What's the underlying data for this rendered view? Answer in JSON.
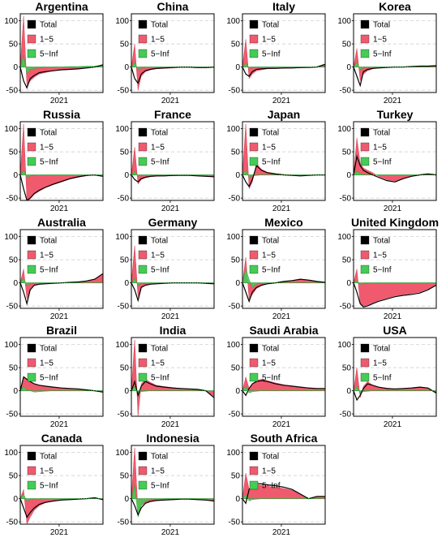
{
  "chart_data": {
    "type": "area",
    "layout": {
      "rows": 5,
      "cols": 4
    },
    "shared": {
      "ylim": [
        -55,
        115
      ],
      "yticks": [
        -50,
        0,
        50,
        100
      ],
      "xtick_label": "2021",
      "grid": "horizontal dashed",
      "zero_line": "green dotted",
      "legend_position": "top-left",
      "legend": [
        {
          "name": "Total",
          "color": "#000000"
        },
        {
          "name": "1−5",
          "color": "#f05a6e"
        },
        {
          "name": "5−Inf",
          "color": "#44cc55"
        }
      ]
    },
    "panels": [
      {
        "country": "Argentina",
        "x_frac": [
          0.0,
          0.04,
          0.08,
          0.12,
          0.17,
          0.23,
          0.3,
          0.4,
          0.5,
          0.6,
          0.7,
          0.8,
          0.9,
          1.0
        ],
        "total": [
          0,
          -30,
          -45,
          -25,
          -18,
          -12,
          -10,
          -8,
          -6,
          -5,
          -4,
          -2,
          0,
          5
        ],
        "short": [
          0,
          110,
          -40,
          -30,
          -22,
          -15,
          -12,
          -8,
          -6,
          -4,
          -3,
          -2,
          0,
          3
        ],
        "long": [
          0,
          25,
          -15,
          -5,
          -3,
          -2,
          -1,
          0,
          0,
          1,
          1,
          2,
          2,
          3
        ]
      },
      {
        "country": "China",
        "x_frac": [
          0.0,
          0.04,
          0.08,
          0.12,
          0.17,
          0.23,
          0.3,
          0.4,
          0.5,
          0.6,
          0.7,
          0.8,
          0.9,
          1.0
        ],
        "total": [
          0,
          -25,
          -35,
          -15,
          -8,
          -5,
          -3,
          -2,
          -1,
          0,
          0,
          -1,
          -1,
          0
        ],
        "short": [
          0,
          50,
          -50,
          -20,
          -10,
          -6,
          -4,
          -3,
          -2,
          -1,
          -1,
          -2,
          -2,
          -1
        ],
        "long": [
          0,
          10,
          -5,
          -2,
          -1,
          0,
          0,
          0,
          0,
          0,
          0,
          0,
          0,
          0
        ]
      },
      {
        "country": "Italy",
        "x_frac": [
          0.0,
          0.04,
          0.08,
          0.12,
          0.17,
          0.23,
          0.3,
          0.4,
          0.5,
          0.6,
          0.7,
          0.8,
          0.9,
          1.0
        ],
        "total": [
          0,
          -15,
          -20,
          -10,
          -5,
          -4,
          -3,
          -3,
          -2,
          -2,
          -1,
          -1,
          0,
          6
        ],
        "short": [
          0,
          60,
          -25,
          -15,
          -8,
          -6,
          -4,
          -3,
          -3,
          -2,
          -2,
          -1,
          0,
          6
        ],
        "long": [
          0,
          8,
          -3,
          -1,
          0,
          0,
          0,
          0,
          0,
          0,
          0,
          0,
          0,
          1
        ]
      },
      {
        "country": "Korea",
        "x_frac": [
          0.0,
          0.04,
          0.08,
          0.12,
          0.17,
          0.23,
          0.3,
          0.4,
          0.5,
          0.6,
          0.7,
          0.8,
          0.9,
          1.0
        ],
        "total": [
          0,
          -20,
          -40,
          -10,
          -5,
          -3,
          -2,
          -1,
          0,
          0,
          1,
          2,
          2,
          3
        ],
        "short": [
          0,
          40,
          -30,
          -15,
          -8,
          -4,
          -2,
          -1,
          0,
          0,
          1,
          1,
          2,
          2
        ],
        "long": [
          0,
          10,
          -5,
          -2,
          -1,
          0,
          0,
          0,
          0,
          0,
          0,
          0,
          0,
          0
        ]
      },
      {
        "country": "Russia",
        "x_frac": [
          0.0,
          0.04,
          0.08,
          0.12,
          0.17,
          0.23,
          0.3,
          0.4,
          0.5,
          0.6,
          0.7,
          0.8,
          0.9,
          1.0
        ],
        "total": [
          0,
          -30,
          -55,
          -50,
          -40,
          -33,
          -27,
          -20,
          -14,
          -8,
          -4,
          -1,
          0,
          -3
        ],
        "short": [
          0,
          110,
          -55,
          -52,
          -42,
          -35,
          -28,
          -21,
          -15,
          -9,
          -5,
          -2,
          0,
          -3
        ],
        "long": [
          0,
          10,
          -5,
          -2,
          -1,
          0,
          0,
          0,
          0,
          0,
          0,
          0,
          0,
          0
        ]
      },
      {
        "country": "France",
        "x_frac": [
          0.0,
          0.04,
          0.08,
          0.12,
          0.17,
          0.23,
          0.3,
          0.4,
          0.5,
          0.6,
          0.7,
          0.8,
          0.9,
          1.0
        ],
        "total": [
          0,
          -10,
          -15,
          -8,
          -5,
          -3,
          -2,
          -2,
          -1,
          -1,
          -1,
          -2,
          -3,
          -4
        ],
        "short": [
          0,
          60,
          -20,
          -10,
          -6,
          -4,
          -3,
          -2,
          -2,
          -1,
          -1,
          -2,
          -3,
          -4
        ],
        "long": [
          0,
          8,
          -3,
          -1,
          0,
          0,
          0,
          0,
          0,
          0,
          0,
          0,
          0,
          0
        ]
      },
      {
        "country": "Japan",
        "x_frac": [
          0.0,
          0.04,
          0.08,
          0.12,
          0.17,
          0.23,
          0.3,
          0.4,
          0.5,
          0.6,
          0.7,
          0.8,
          0.9,
          1.0
        ],
        "total": [
          0,
          -15,
          -25,
          -10,
          20,
          10,
          5,
          2,
          0,
          -1,
          -2,
          -1,
          0,
          0
        ],
        "short": [
          0,
          110,
          -30,
          -15,
          25,
          12,
          6,
          3,
          1,
          0,
          -1,
          -1,
          0,
          0
        ],
        "long": [
          0,
          10,
          -5,
          -2,
          -1,
          0,
          0,
          0,
          0,
          0,
          0,
          0,
          0,
          0
        ]
      },
      {
        "country": "Turkey",
        "x_frac": [
          0.0,
          0.04,
          0.08,
          0.12,
          0.17,
          0.23,
          0.3,
          0.4,
          0.5,
          0.6,
          0.7,
          0.8,
          0.9,
          1.0
        ],
        "total": [
          0,
          40,
          20,
          10,
          5,
          0,
          -5,
          -12,
          -15,
          -8,
          -3,
          0,
          2,
          0
        ],
        "short": [
          0,
          80,
          25,
          15,
          10,
          5,
          -3,
          -10,
          -13,
          -7,
          -2,
          1,
          3,
          1
        ],
        "long": [
          0,
          8,
          3,
          1,
          0,
          0,
          0,
          0,
          0,
          0,
          0,
          0,
          0,
          0
        ]
      },
      {
        "country": "Australia",
        "x_frac": [
          0.0,
          0.04,
          0.08,
          0.12,
          0.17,
          0.23,
          0.3,
          0.4,
          0.5,
          0.6,
          0.7,
          0.8,
          0.9,
          1.0
        ],
        "total": [
          0,
          -20,
          -45,
          -15,
          -5,
          -3,
          -2,
          -1,
          0,
          1,
          2,
          4,
          8,
          20
        ],
        "short": [
          0,
          30,
          -35,
          -12,
          -4,
          -2,
          -1,
          0,
          0,
          1,
          2,
          4,
          8,
          20
        ],
        "long": [
          0,
          10,
          -5,
          -2,
          -1,
          0,
          0,
          0,
          0,
          0,
          0,
          0,
          0,
          0
        ]
      },
      {
        "country": "Germany",
        "x_frac": [
          0.0,
          0.04,
          0.08,
          0.12,
          0.17,
          0.23,
          0.3,
          0.4,
          0.5,
          0.6,
          0.7,
          0.8,
          0.9,
          1.0
        ],
        "total": [
          0,
          -15,
          -38,
          -10,
          -5,
          -3,
          -2,
          -1,
          0,
          0,
          0,
          0,
          -1,
          -2
        ],
        "short": [
          0,
          80,
          -30,
          -10,
          -5,
          -3,
          -2,
          -1,
          0,
          0,
          0,
          0,
          -1,
          -2
        ],
        "long": [
          0,
          10,
          -5,
          -2,
          -1,
          0,
          0,
          0,
          0,
          0,
          0,
          0,
          0,
          0
        ]
      },
      {
        "country": "Mexico",
        "x_frac": [
          0.0,
          0.04,
          0.08,
          0.12,
          0.17,
          0.23,
          0.3,
          0.4,
          0.5,
          0.6,
          0.7,
          0.8,
          0.9,
          1.0
        ],
        "total": [
          0,
          -20,
          -40,
          -20,
          -10,
          -5,
          -2,
          0,
          3,
          5,
          8,
          6,
          3,
          1
        ],
        "short": [
          0,
          55,
          -35,
          -25,
          -12,
          -6,
          -2,
          0,
          3,
          5,
          8,
          6,
          3,
          1
        ],
        "long": [
          0,
          30,
          8,
          -10,
          -3,
          -1,
          0,
          0,
          0,
          0,
          0,
          0,
          0,
          0
        ]
      },
      {
        "country": "United Kingdom",
        "x_frac": [
          0.0,
          0.04,
          0.08,
          0.12,
          0.17,
          0.23,
          0.3,
          0.4,
          0.5,
          0.6,
          0.7,
          0.8,
          0.9,
          1.0
        ],
        "total": [
          0,
          -20,
          -45,
          -52,
          -50,
          -45,
          -40,
          -35,
          -30,
          -27,
          -25,
          -22,
          -15,
          -5
        ],
        "short": [
          0,
          30,
          -45,
          -50,
          -48,
          -43,
          -38,
          -33,
          -28,
          -25,
          -23,
          -20,
          -13,
          -4
        ],
        "long": [
          0,
          5,
          -3,
          -2,
          -1,
          0,
          0,
          0,
          0,
          0,
          0,
          0,
          0,
          0
        ]
      },
      {
        "country": "Brazil",
        "x_frac": [
          0.0,
          0.04,
          0.08,
          0.12,
          0.17,
          0.23,
          0.3,
          0.4,
          0.5,
          0.6,
          0.7,
          0.8,
          0.9,
          1.0
        ],
        "total": [
          0,
          30,
          25,
          20,
          15,
          12,
          10,
          8,
          6,
          5,
          4,
          2,
          0,
          -3
        ],
        "short": [
          0,
          30,
          25,
          20,
          15,
          12,
          10,
          8,
          6,
          5,
          4,
          2,
          0,
          -3
        ],
        "long": [
          0,
          10,
          2,
          0,
          -3,
          -2,
          -1,
          0,
          0,
          0,
          0,
          0,
          0,
          0
        ]
      },
      {
        "country": "India",
        "x_frac": [
          0.0,
          0.04,
          0.08,
          0.12,
          0.17,
          0.23,
          0.3,
          0.4,
          0.5,
          0.6,
          0.7,
          0.8,
          0.9,
          1.0
        ],
        "total": [
          0,
          20,
          -10,
          10,
          20,
          15,
          10,
          8,
          6,
          5,
          4,
          3,
          0,
          -15
        ],
        "short": [
          0,
          110,
          -55,
          15,
          25,
          18,
          12,
          9,
          7,
          5,
          4,
          3,
          0,
          -12
        ],
        "long": [
          0,
          10,
          -5,
          -2,
          -1,
          0,
          0,
          0,
          0,
          0,
          0,
          0,
          0,
          0
        ]
      },
      {
        "country": "Saudi Arabia",
        "x_frac": [
          0.0,
          0.04,
          0.08,
          0.12,
          0.17,
          0.23,
          0.3,
          0.4,
          0.5,
          0.6,
          0.7,
          0.8,
          0.9,
          1.0
        ],
        "total": [
          0,
          -10,
          5,
          15,
          20,
          22,
          20,
          15,
          12,
          10,
          8,
          6,
          5,
          5
        ],
        "short": [
          0,
          30,
          5,
          15,
          22,
          25,
          22,
          17,
          13,
          10,
          8,
          6,
          5,
          5
        ],
        "long": [
          0,
          10,
          -5,
          -2,
          -1,
          0,
          0,
          0,
          0,
          0,
          0,
          0,
          0,
          0
        ]
      },
      {
        "country": "USA",
        "x_frac": [
          0.0,
          0.04,
          0.08,
          0.12,
          0.17,
          0.23,
          0.3,
          0.4,
          0.5,
          0.6,
          0.7,
          0.8,
          0.9,
          1.0
        ],
        "total": [
          0,
          -20,
          -10,
          5,
          15,
          12,
          8,
          5,
          4,
          5,
          6,
          8,
          6,
          -5
        ],
        "short": [
          0,
          50,
          -15,
          10,
          20,
          12,
          8,
          6,
          4,
          5,
          6,
          8,
          6,
          -5
        ],
        "long": [
          0,
          10,
          -5,
          -2,
          -1,
          0,
          0,
          0,
          0,
          0,
          0,
          0,
          0,
          0
        ]
      },
      {
        "country": "Canada",
        "x_frac": [
          0.0,
          0.04,
          0.08,
          0.12,
          0.17,
          0.23,
          0.3,
          0.4,
          0.5,
          0.6,
          0.7,
          0.8,
          0.9,
          1.0
        ],
        "total": [
          0,
          -20,
          -40,
          -30,
          -20,
          -12,
          -8,
          -5,
          -3,
          -2,
          -1,
          0,
          2,
          -2
        ],
        "short": [
          0,
          20,
          -55,
          -40,
          -25,
          -15,
          -9,
          -5,
          -3,
          -2,
          -1,
          0,
          2,
          -2
        ],
        "long": [
          0,
          10,
          -5,
          -2,
          -1,
          0,
          0,
          0,
          0,
          0,
          0,
          0,
          0,
          0
        ]
      },
      {
        "country": "Indonesia",
        "x_frac": [
          0.0,
          0.04,
          0.08,
          0.12,
          0.17,
          0.23,
          0.3,
          0.4,
          0.5,
          0.6,
          0.7,
          0.8,
          0.9,
          1.0
        ],
        "total": [
          0,
          -15,
          -35,
          -20,
          -10,
          -6,
          -4,
          -3,
          -2,
          -1,
          -1,
          -2,
          -3,
          -5
        ],
        "short": [
          0,
          110,
          -30,
          -15,
          -8,
          -5,
          -3,
          -2,
          -1,
          -1,
          -1,
          -2,
          -3,
          -5
        ],
        "long": [
          0,
          30,
          -40,
          -15,
          -5,
          -2,
          -1,
          0,
          0,
          0,
          0,
          0,
          0,
          0
        ]
      },
      {
        "country": "South Africa",
        "x_frac": [
          0.0,
          0.04,
          0.08,
          0.12,
          0.17,
          0.23,
          0.3,
          0.4,
          0.5,
          0.6,
          0.7,
          0.8,
          0.9,
          1.0
        ],
        "total": [
          0,
          -10,
          20,
          30,
          33,
          32,
          30,
          28,
          25,
          20,
          10,
          0,
          5,
          5
        ],
        "short": [
          0,
          55,
          20,
          28,
          30,
          29,
          27,
          25,
          22,
          18,
          9,
          0,
          5,
          5
        ],
        "long": [
          0,
          10,
          -5,
          -2,
          -1,
          0,
          0,
          0,
          0,
          0,
          0,
          0,
          0,
          0
        ]
      }
    ]
  }
}
